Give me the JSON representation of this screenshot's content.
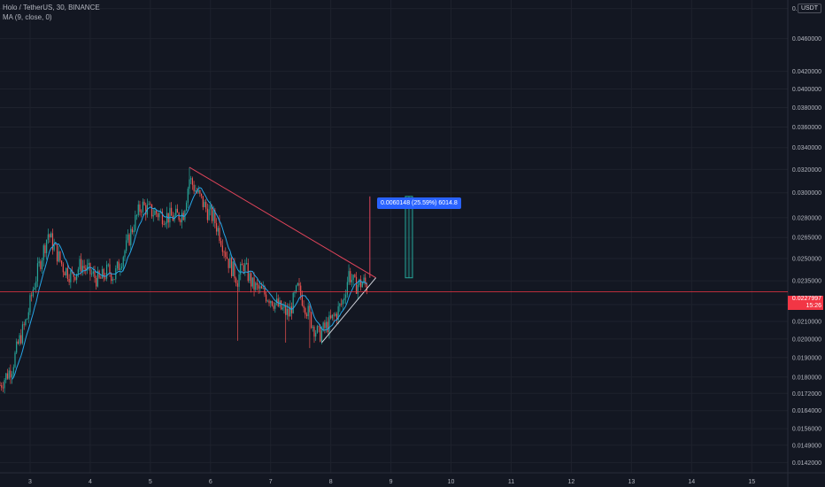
{
  "header": {
    "symbol_line": "Holo / TetherUS, 30, BINANCE",
    "indicator_line": "MA (9, close, 0)"
  },
  "price_axis": {
    "currency": "USDT",
    "ticks": [
      "0.0500000",
      "0.0460000",
      "0.0420000",
      "0.0400000",
      "0.0380000",
      "0.0360000",
      "0.0340000",
      "0.0320000",
      "0.0300000",
      "0.0280000",
      "0.0265000",
      "0.0250000",
      "0.0235000",
      "0.0220000",
      "0.0210000",
      "0.0200000",
      "0.0190000",
      "0.0180000",
      "0.0172000",
      "0.0164000",
      "0.0156000",
      "0.0149000",
      "0.0142000"
    ],
    "last_price": "0.0227997",
    "countdown": "15:26"
  },
  "time_axis": {
    "ticks": [
      "3",
      "4",
      "5",
      "6",
      "7",
      "8",
      "9",
      "10",
      "11",
      "12",
      "13",
      "14",
      "15"
    ]
  },
  "measure": {
    "label": "0.0060148 (25.59%) 6014.8"
  },
  "colors": {
    "background": "#131722",
    "up": "#26a69a",
    "down": "#ef5350",
    "ma": "#26a6e8",
    "trendline": "#e0445a",
    "support": "#d1d4dc",
    "price_line": "#f23645",
    "measure": "#2962ff"
  },
  "chart_data": {
    "type": "candlestick",
    "symbol": "Holo / TetherUS",
    "interval": "30",
    "exchange": "BINANCE",
    "y_scale": "log",
    "ylim": [
      0.0138,
      0.0512
    ],
    "xlim": [
      2.5,
      15.6
    ],
    "close_path": [
      [
        2.5,
        0.0176
      ],
      [
        2.7,
        0.0185
      ],
      [
        2.8,
        0.0197
      ],
      [
        2.95,
        0.0212
      ],
      [
        3.05,
        0.023
      ],
      [
        3.15,
        0.0245
      ],
      [
        3.3,
        0.0268
      ],
      [
        3.4,
        0.0258
      ],
      [
        3.55,
        0.0244
      ],
      [
        3.7,
        0.0238
      ],
      [
        3.85,
        0.0246
      ],
      [
        4.0,
        0.024
      ],
      [
        4.15,
        0.0235
      ],
      [
        4.3,
        0.0242
      ],
      [
        4.4,
        0.0238
      ],
      [
        4.5,
        0.0248
      ],
      [
        4.6,
        0.0258
      ],
      [
        4.7,
        0.0272
      ],
      [
        4.85,
        0.029
      ],
      [
        5.0,
        0.0285
      ],
      [
        5.2,
        0.0282
      ],
      [
        5.4,
        0.028
      ],
      [
        5.55,
        0.0284
      ],
      [
        5.65,
        0.0312
      ],
      [
        5.8,
        0.0298
      ],
      [
        5.95,
        0.0285
      ],
      [
        6.05,
        0.028
      ],
      [
        6.15,
        0.0268
      ],
      [
        6.3,
        0.0248
      ],
      [
        6.45,
        0.0236
      ],
      [
        6.55,
        0.0246
      ],
      [
        6.7,
        0.0232
      ],
      [
        6.85,
        0.0228
      ],
      [
        7.0,
        0.0224
      ],
      [
        7.15,
        0.0218
      ],
      [
        7.3,
        0.0214
      ],
      [
        7.45,
        0.023
      ],
      [
        7.55,
        0.0222
      ],
      [
        7.7,
        0.0208
      ],
      [
        7.8,
        0.0202
      ],
      [
        7.9,
        0.0206
      ],
      [
        8.0,
        0.021
      ],
      [
        8.1,
        0.0215
      ],
      [
        8.2,
        0.0222
      ],
      [
        8.3,
        0.024
      ],
      [
        8.4,
        0.0232
      ],
      [
        8.55,
        0.0234
      ],
      [
        8.62,
        0.023
      ]
    ],
    "spikes": [
      [
        5.65,
        0.0322
      ],
      [
        6.15,
        0.0282
      ],
      [
        6.45,
        0.0199
      ],
      [
        7.25,
        0.0198
      ],
      [
        7.65,
        0.0195
      ],
      [
        8.3,
        0.0246
      ]
    ],
    "series": [
      {
        "type": "candles"
      },
      {
        "name": "MA (9, close, 0)",
        "type": "line"
      }
    ],
    "drawings": {
      "resistance_trendline": [
        [
          5.65,
          0.0322
        ],
        [
          8.75,
          0.0237
        ]
      ],
      "support_trendline": [
        [
          7.85,
          0.0198
        ],
        [
          8.75,
          0.0237
        ]
      ],
      "measure_vertical": [
        [
          8.65,
          0.0237
        ],
        [
          8.65,
          0.0297
        ]
      ],
      "target_range": [
        9.3,
        0.0237,
        0.0297
      ],
      "last_price": 0.0227997
    }
  }
}
